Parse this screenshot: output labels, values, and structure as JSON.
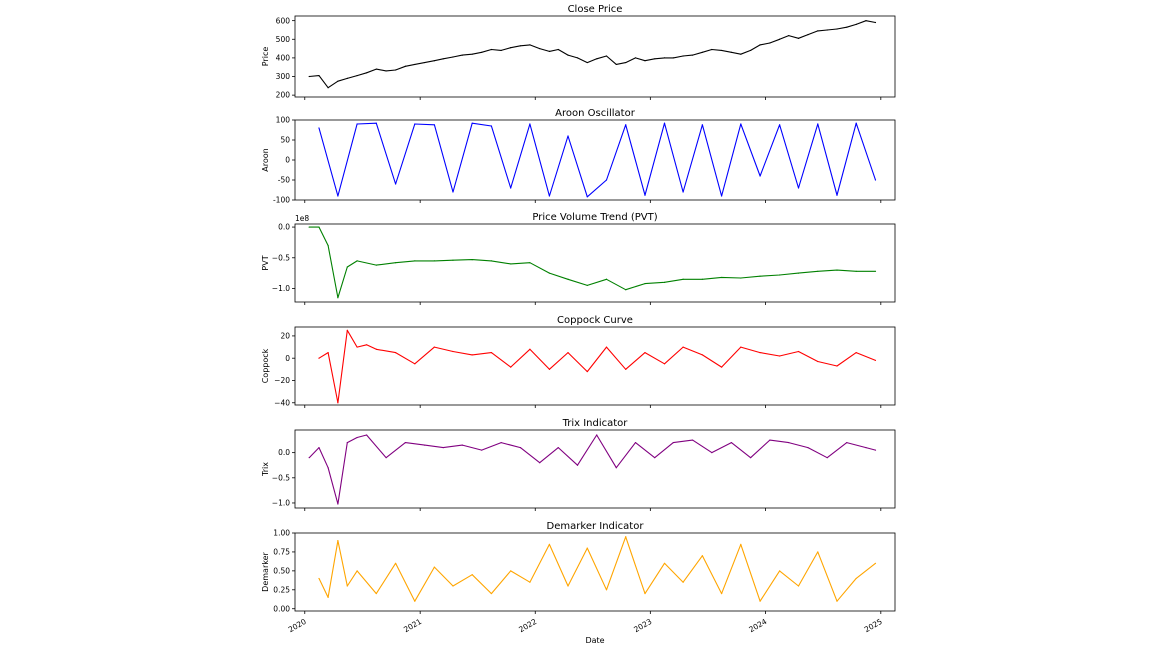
{
  "figure": {
    "xlabel": "Date"
  },
  "x_ticks": [
    "2020",
    "2021",
    "2022",
    "2023",
    "2024",
    "2025"
  ],
  "chart_data": [
    {
      "type": "line",
      "title": "Close Price",
      "ylabel": "Price",
      "color": "#000000",
      "ylim": [
        190,
        625
      ],
      "yticks": [
        200,
        300,
        400,
        500,
        600
      ],
      "offset_text": "",
      "x": [
        "2020-01",
        "2020-02",
        "2020-03",
        "2020-04",
        "2020-05",
        "2020-06",
        "2020-07",
        "2020-08",
        "2020-09",
        "2020-10",
        "2020-11",
        "2020-12",
        "2021-01",
        "2021-02",
        "2021-03",
        "2021-04",
        "2021-05",
        "2021-06",
        "2021-07",
        "2021-08",
        "2021-09",
        "2021-10",
        "2021-11",
        "2021-12",
        "2022-01",
        "2022-02",
        "2022-03",
        "2022-04",
        "2022-05",
        "2022-06",
        "2022-07",
        "2022-08",
        "2022-09",
        "2022-10",
        "2022-11",
        "2022-12",
        "2023-01",
        "2023-02",
        "2023-03",
        "2023-04",
        "2023-05",
        "2023-06",
        "2023-07",
        "2023-08",
        "2023-09",
        "2023-10",
        "2023-11",
        "2023-12",
        "2024-01",
        "2024-02",
        "2024-03",
        "2024-04",
        "2024-05",
        "2024-06",
        "2024-07",
        "2024-08",
        "2024-09",
        "2024-10",
        "2024-11",
        "2024-12"
      ],
      "values": [
        300,
        305,
        240,
        275,
        290,
        305,
        320,
        340,
        330,
        335,
        355,
        365,
        375,
        385,
        395,
        405,
        415,
        420,
        430,
        445,
        440,
        455,
        465,
        470,
        450,
        435,
        445,
        415,
        400,
        375,
        395,
        410,
        365,
        375,
        400,
        385,
        395,
        400,
        400,
        410,
        415,
        430,
        445,
        440,
        430,
        420,
        440,
        470,
        480,
        500,
        520,
        505,
        525,
        545,
        550,
        555,
        565,
        580,
        600,
        590
      ]
    },
    {
      "type": "line",
      "title": "Aroon Oscillator",
      "ylabel": "Aroon",
      "color": "#0000ff",
      "ylim": [
        -100,
        100
      ],
      "yticks": [
        -100,
        -50,
        0,
        50,
        100
      ],
      "offset_text": "",
      "x": [
        "2020-02",
        "2020-04",
        "2020-06",
        "2020-08",
        "2020-10",
        "2020-12",
        "2021-02",
        "2021-04",
        "2021-06",
        "2021-08",
        "2021-10",
        "2021-12",
        "2022-02",
        "2022-04",
        "2022-06",
        "2022-08",
        "2022-10",
        "2022-12",
        "2023-02",
        "2023-04",
        "2023-06",
        "2023-08",
        "2023-10",
        "2023-12",
        "2024-02",
        "2024-04",
        "2024-06",
        "2024-08",
        "2024-10",
        "2024-12"
      ],
      "values": [
        80,
        -90,
        90,
        92,
        -60,
        90,
        88,
        -80,
        92,
        85,
        -70,
        90,
        -90,
        60,
        -92,
        -50,
        88,
        -88,
        92,
        -80,
        88,
        -90,
        90,
        -40,
        88,
        -70,
        90,
        -88,
        92,
        -50
      ]
    },
    {
      "type": "line",
      "title": "Price Volume Trend (PVT)",
      "ylabel": "PVT",
      "color": "#008000",
      "ylim": [
        -1.22,
        0.05
      ],
      "yticks": [
        -1.0,
        -0.5,
        0.0
      ],
      "ytick_labels": [
        "−1.0",
        "−0.5",
        "0.0"
      ],
      "offset_text": "1e8",
      "x": [
        "2020-01",
        "2020-02",
        "2020-03",
        "2020-04",
        "2020-05",
        "2020-06",
        "2020-08",
        "2020-10",
        "2020-12",
        "2021-02",
        "2021-04",
        "2021-06",
        "2021-08",
        "2021-10",
        "2021-12",
        "2022-02",
        "2022-04",
        "2022-06",
        "2022-08",
        "2022-10",
        "2022-12",
        "2023-02",
        "2023-04",
        "2023-06",
        "2023-08",
        "2023-10",
        "2023-12",
        "2024-02",
        "2024-04",
        "2024-06",
        "2024-08",
        "2024-10",
        "2024-12"
      ],
      "values": [
        0.0,
        0.0,
        -0.3,
        -1.15,
        -0.65,
        -0.55,
        -0.62,
        -0.58,
        -0.55,
        -0.55,
        -0.54,
        -0.53,
        -0.55,
        -0.6,
        -0.58,
        -0.75,
        -0.85,
        -0.95,
        -0.85,
        -1.02,
        -0.92,
        -0.9,
        -0.85,
        -0.85,
        -0.82,
        -0.83,
        -0.8,
        -0.78,
        -0.75,
        -0.72,
        -0.7,
        -0.72,
        -0.72
      ]
    },
    {
      "type": "line",
      "title": "Coppock Curve",
      "ylabel": "Coppock",
      "color": "#ff0000",
      "ylim": [
        -42,
        28
      ],
      "yticks": [
        -40,
        -20,
        0,
        20
      ],
      "ytick_labels": [
        "−40",
        "−20",
        "0",
        "20"
      ],
      "offset_text": "",
      "x": [
        "2020-02",
        "2020-03",
        "2020-04",
        "2020-05",
        "2020-06",
        "2020-07",
        "2020-08",
        "2020-10",
        "2020-12",
        "2021-02",
        "2021-04",
        "2021-06",
        "2021-08",
        "2021-10",
        "2021-12",
        "2022-02",
        "2022-04",
        "2022-06",
        "2022-08",
        "2022-10",
        "2022-12",
        "2023-02",
        "2023-04",
        "2023-06",
        "2023-08",
        "2023-10",
        "2023-12",
        "2024-02",
        "2024-04",
        "2024-06",
        "2024-08",
        "2024-10",
        "2024-12"
      ],
      "values": [
        0,
        5,
        -40,
        25,
        10,
        12,
        8,
        5,
        -5,
        10,
        6,
        3,
        5,
        -8,
        8,
        -10,
        5,
        -12,
        10,
        -10,
        5,
        -5,
        10,
        3,
        -8,
        10,
        5,
        2,
        6,
        -3,
        -7,
        5,
        -2
      ]
    },
    {
      "type": "line",
      "title": "Trix Indicator",
      "ylabel": "Trix",
      "color": "#800080",
      "ylim": [
        -1.1,
        0.45
      ],
      "yticks": [
        -1.0,
        -0.5,
        0.0
      ],
      "ytick_labels": [
        "−1.0",
        "−0.5",
        "0.0"
      ],
      "offset_text": "",
      "x": [
        "2020-01",
        "2020-02",
        "2020-03",
        "2020-04",
        "2020-05",
        "2020-06",
        "2020-07",
        "2020-09",
        "2020-11",
        "2021-01",
        "2021-03",
        "2021-05",
        "2021-07",
        "2021-09",
        "2021-11",
        "2022-01",
        "2022-03",
        "2022-05",
        "2022-07",
        "2022-09",
        "2022-11",
        "2023-01",
        "2023-03",
        "2023-05",
        "2023-07",
        "2023-09",
        "2023-11",
        "2024-01",
        "2024-03",
        "2024-05",
        "2024-07",
        "2024-09",
        "2024-11",
        "2024-12"
      ],
      "values": [
        -0.1,
        0.1,
        -0.3,
        -1.02,
        0.2,
        0.3,
        0.35,
        -0.1,
        0.2,
        0.15,
        0.1,
        0.15,
        0.05,
        0.2,
        0.1,
        -0.2,
        0.1,
        -0.25,
        0.35,
        -0.3,
        0.2,
        -0.1,
        0.2,
        0.25,
        0.0,
        0.2,
        -0.1,
        0.25,
        0.2,
        0.1,
        -0.1,
        0.2,
        0.1,
        0.05
      ]
    },
    {
      "type": "line",
      "title": "Demarker Indicator",
      "ylabel": "Demarker",
      "color": "#ffa500",
      "ylim": [
        -0.03,
        1.0
      ],
      "yticks": [
        0.0,
        0.25,
        0.5,
        0.75,
        1.0
      ],
      "ytick_labels": [
        "0.00",
        "0.25",
        "0.50",
        "0.75",
        "1.00"
      ],
      "offset_text": "",
      "x": [
        "2020-02",
        "2020-03",
        "2020-04",
        "2020-05",
        "2020-06",
        "2020-08",
        "2020-10",
        "2020-12",
        "2021-02",
        "2021-04",
        "2021-06",
        "2021-08",
        "2021-10",
        "2021-12",
        "2022-02",
        "2022-04",
        "2022-06",
        "2022-08",
        "2022-10",
        "2022-12",
        "2023-02",
        "2023-04",
        "2023-06",
        "2023-08",
        "2023-10",
        "2023-12",
        "2024-02",
        "2024-04",
        "2024-06",
        "2024-08",
        "2024-10",
        "2024-12"
      ],
      "values": [
        0.4,
        0.15,
        0.9,
        0.3,
        0.5,
        0.2,
        0.6,
        0.1,
        0.55,
        0.3,
        0.45,
        0.2,
        0.5,
        0.35,
        0.85,
        0.3,
        0.8,
        0.25,
        0.95,
        0.2,
        0.6,
        0.35,
        0.7,
        0.2,
        0.85,
        0.1,
        0.5,
        0.3,
        0.75,
        0.1,
        0.4,
        0.6
      ]
    }
  ]
}
